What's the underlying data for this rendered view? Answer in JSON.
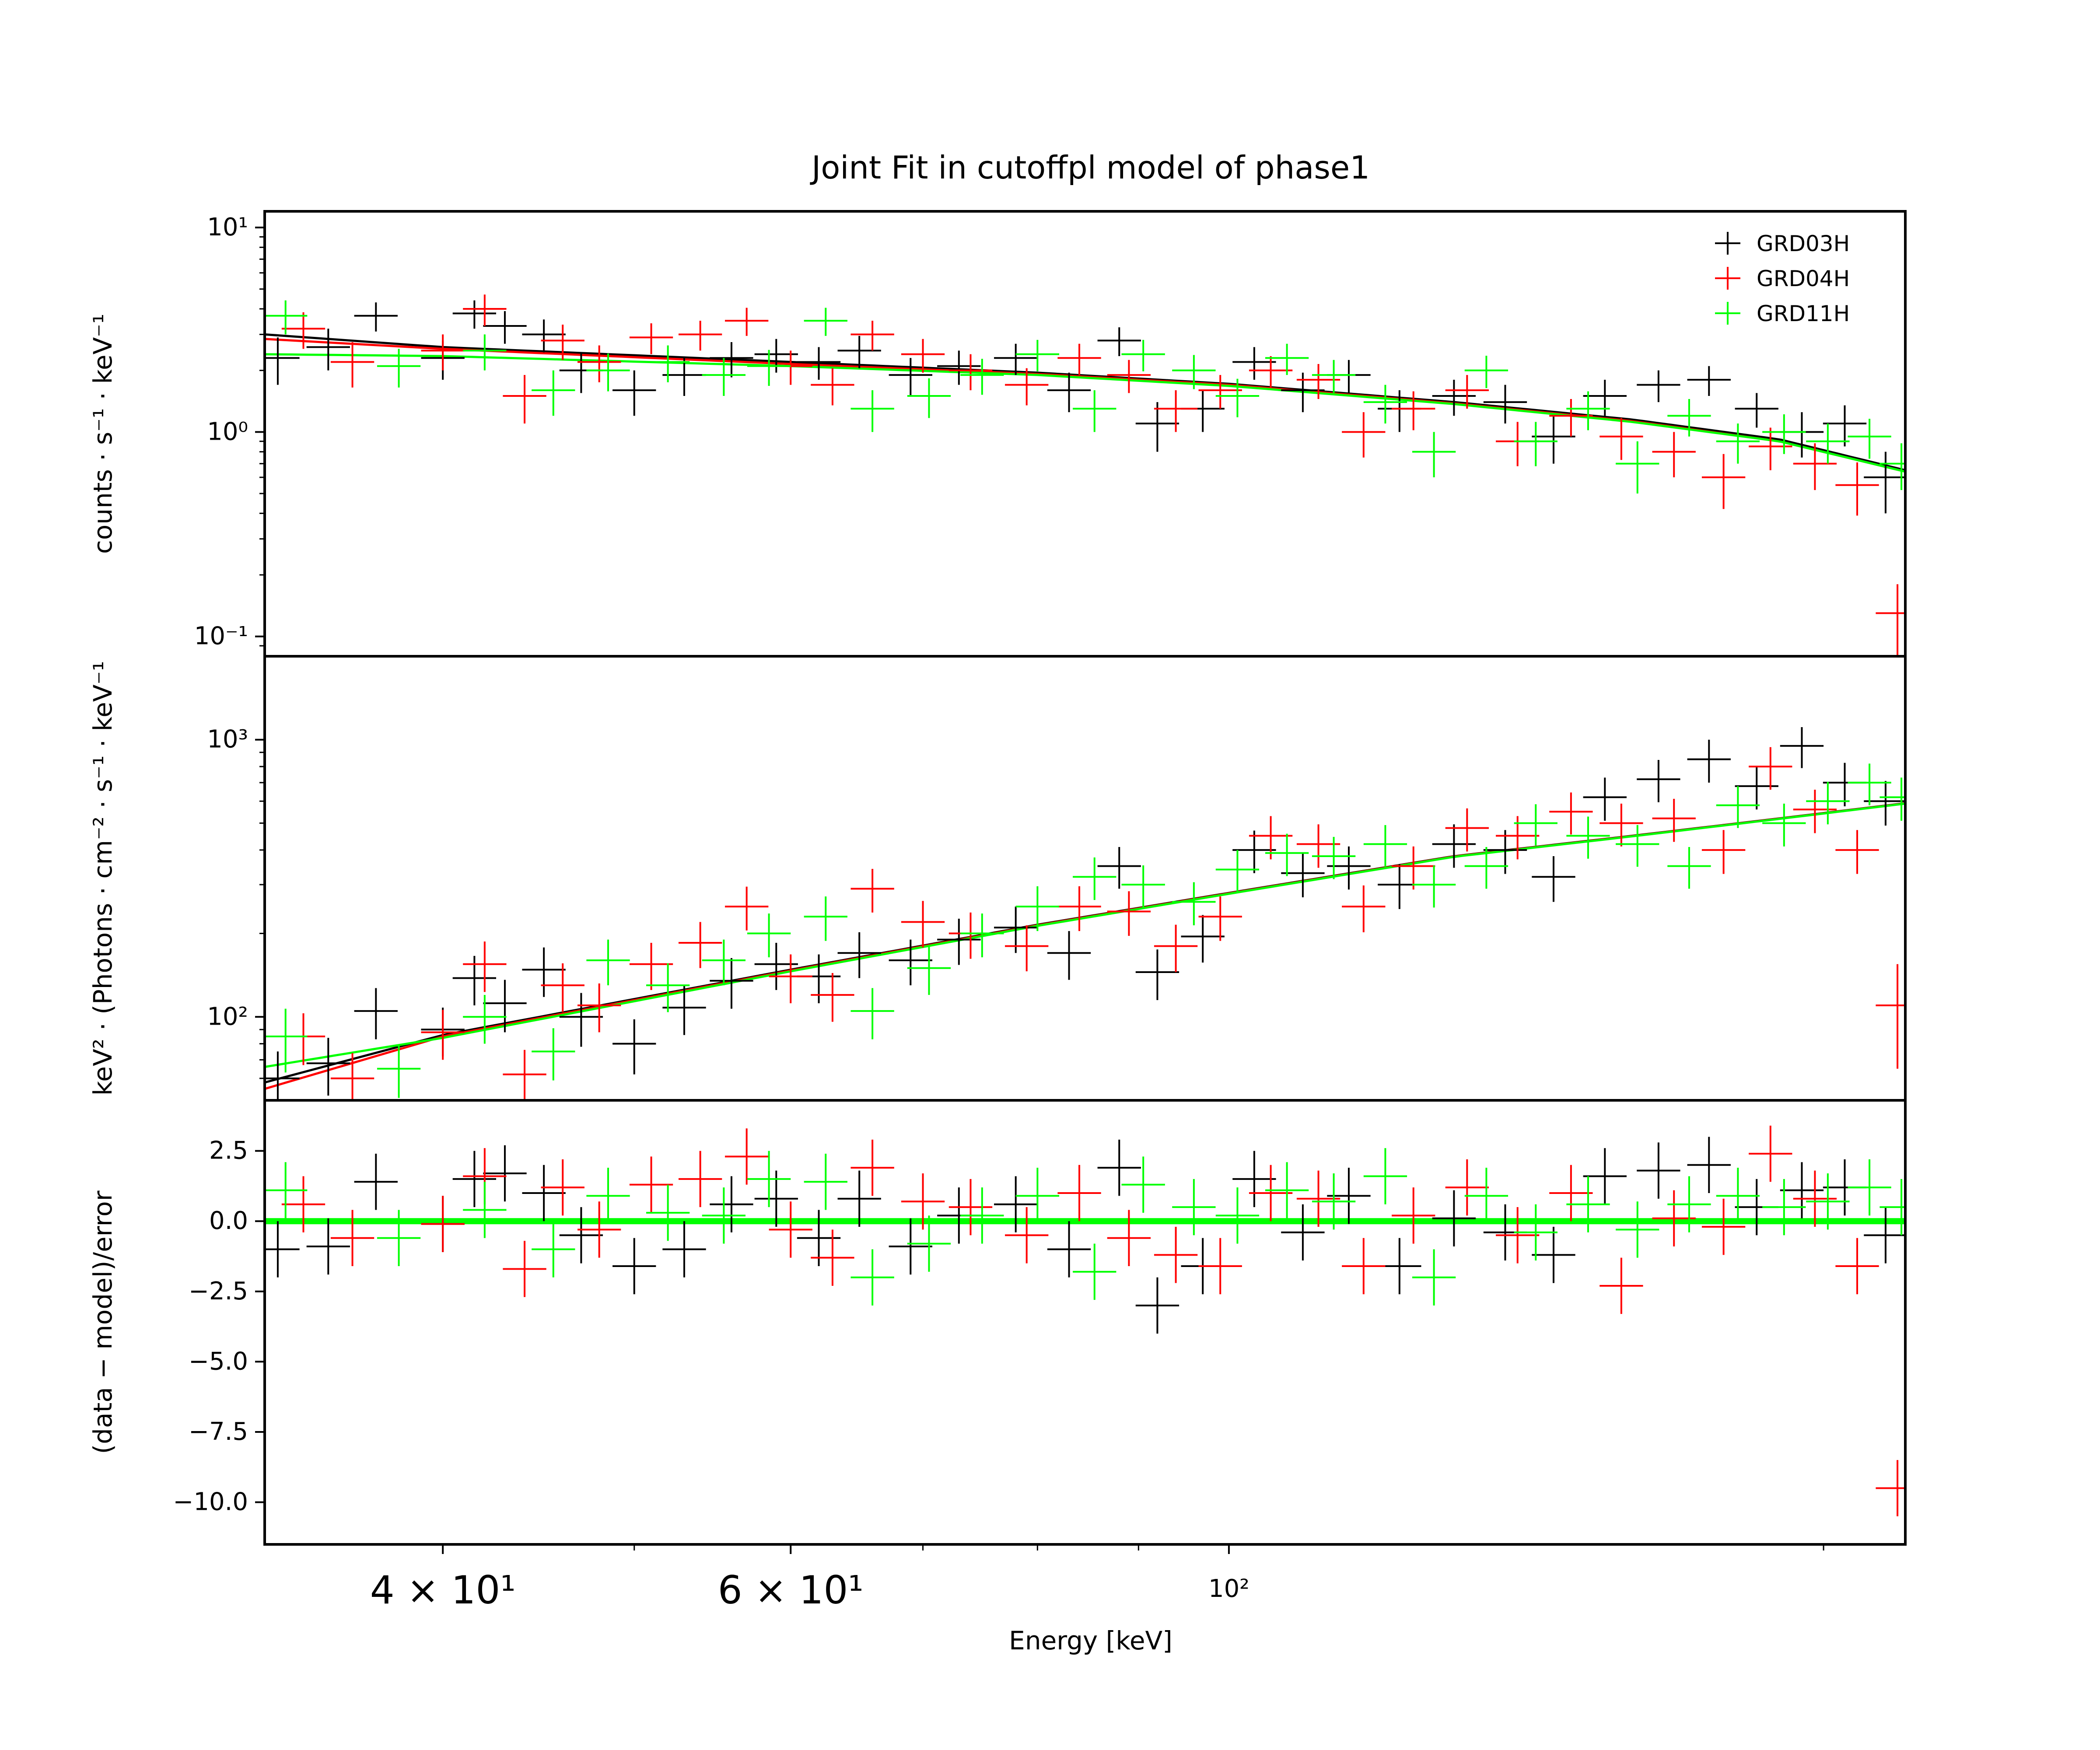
{
  "title": "Joint Fit  in cutoffpl model of phase1",
  "xlabel": "Energy [keV]",
  "legend": [
    {
      "name": "GRD03H",
      "color": "#000000"
    },
    {
      "name": "GRD04H",
      "color": "#ff0000"
    },
    {
      "name": "GRD11H",
      "color": "#00ff00"
    }
  ],
  "chart_data": [
    {
      "type": "scatter",
      "panel": "counts",
      "title": "Joint Fit  in cutoffpl model of phase1",
      "ylabel": "counts · s⁻¹ · keV⁻¹",
      "xscale": "log",
      "yscale": "log",
      "xlim": [
        32.5,
        220
      ],
      "ylim": [
        0.08,
        12
      ],
      "ytick_labels": [
        "10⁻¹",
        "10⁰",
        "10¹"
      ],
      "ytick_values": [
        0.1,
        1,
        10
      ],
      "series": [
        {
          "name": "GRD03H",
          "color": "#000000",
          "x": [
            33,
            35,
            37,
            40,
            41.5,
            43,
            45,
            47,
            50,
            53,
            56,
            59,
            62,
            65,
            69,
            73,
            78,
            83,
            88,
            92,
            97,
            103,
            109,
            115,
            122,
            130,
            138,
            146,
            155,
            165,
            175,
            185,
            195,
            205,
            215
          ],
          "y": [
            2.3,
            2.6,
            3.7,
            2.3,
            3.8,
            3.3,
            3.0,
            2.0,
            1.6,
            1.9,
            2.3,
            2.4,
            2.2,
            2.5,
            1.9,
            2.1,
            2.3,
            1.6,
            2.8,
            1.1,
            1.3,
            2.2,
            1.6,
            1.9,
            1.3,
            1.5,
            1.4,
            0.95,
            1.5,
            1.7,
            1.8,
            1.3,
            1.0,
            1.1,
            0.6
          ],
          "yerr": [
            0.6,
            0.6,
            0.6,
            0.5,
            0.6,
            0.6,
            0.55,
            0.45,
            0.4,
            0.4,
            0.45,
            0.45,
            0.4,
            0.45,
            0.4,
            0.4,
            0.4,
            0.35,
            0.45,
            0.3,
            0.3,
            0.4,
            0.35,
            0.35,
            0.3,
            0.3,
            0.3,
            0.25,
            0.3,
            0.3,
            0.3,
            0.25,
            0.25,
            0.25,
            0.2
          ]
        },
        {
          "name": "GRD04H",
          "color": "#ff0000",
          "x": [
            34,
            36,
            40,
            42,
            44,
            46,
            48,
            51,
            54,
            57,
            60,
            63,
            66,
            70,
            74,
            79,
            84,
            89,
            94,
            99,
            105,
            111,
            117,
            124,
            132,
            140,
            149,
            158,
            168,
            178,
            188,
            198,
            208,
            218
          ],
          "y": [
            3.2,
            2.2,
            2.5,
            4.0,
            1.5,
            2.8,
            2.2,
            2.9,
            3.0,
            3.5,
            2.1,
            1.7,
            3.0,
            2.4,
            2.0,
            1.7,
            2.3,
            1.9,
            1.3,
            1.6,
            2.0,
            1.8,
            1.0,
            1.3,
            1.6,
            0.9,
            1.2,
            0.95,
            0.8,
            0.6,
            0.85,
            0.7,
            0.55,
            0.13
          ],
          "yerr": [
            0.65,
            0.55,
            0.5,
            0.7,
            0.4,
            0.55,
            0.45,
            0.5,
            0.5,
            0.55,
            0.4,
            0.35,
            0.5,
            0.45,
            0.4,
            0.35,
            0.4,
            0.35,
            0.3,
            0.3,
            0.35,
            0.35,
            0.25,
            0.28,
            0.3,
            0.22,
            0.25,
            0.22,
            0.2,
            0.18,
            0.2,
            0.18,
            0.16,
            0.05
          ]
        },
        {
          "name": "GRD11H",
          "color": "#00ff00",
          "x": [
            33.3,
            38,
            42,
            45.5,
            48.5,
            52,
            55.5,
            58.5,
            62.5,
            66,
            70.5,
            75,
            80,
            85.5,
            90.5,
            96,
            101,
            107,
            113,
            120,
            127,
            135,
            143,
            152,
            161,
            171,
            181,
            191,
            201,
            211,
            219
          ],
          "y": [
            3.7,
            2.1,
            2.5,
            1.6,
            2.0,
            2.2,
            1.9,
            2.1,
            3.5,
            1.3,
            1.5,
            1.9,
            2.4,
            1.3,
            2.4,
            2.0,
            1.5,
            2.3,
            1.9,
            1.4,
            0.8,
            2.0,
            0.9,
            1.3,
            0.7,
            1.2,
            0.9,
            1.0,
            0.9,
            0.95,
            0.7
          ],
          "yerr": [
            0.7,
            0.45,
            0.5,
            0.4,
            0.42,
            0.45,
            0.4,
            0.42,
            0.55,
            0.3,
            0.33,
            0.38,
            0.42,
            0.3,
            0.42,
            0.38,
            0.32,
            0.4,
            0.35,
            0.3,
            0.2,
            0.36,
            0.22,
            0.28,
            0.2,
            0.25,
            0.2,
            0.22,
            0.2,
            0.21,
            0.18
          ]
        }
      ],
      "models": [
        {
          "name": "GRD03H",
          "color": "#000000",
          "x": [
            32.5,
            40,
            60,
            80,
            100,
            130,
            160,
            190,
            220
          ],
          "y": [
            3.0,
            2.6,
            2.2,
            1.95,
            1.72,
            1.4,
            1.15,
            0.92,
            0.65
          ]
        },
        {
          "name": "GRD04H",
          "color": "#ff0000",
          "x": [
            32.5,
            40,
            60,
            80,
            100,
            130,
            160,
            190,
            220
          ],
          "y": [
            2.85,
            2.55,
            2.15,
            1.92,
            1.7,
            1.38,
            1.13,
            0.9,
            0.64
          ]
        },
        {
          "name": "GRD11H",
          "color": "#00ff00",
          "x": [
            32.5,
            40,
            60,
            80,
            100,
            130,
            160,
            190,
            220
          ],
          "y": [
            2.4,
            2.35,
            2.1,
            1.9,
            1.68,
            1.37,
            1.12,
            0.9,
            0.64
          ]
        }
      ]
    },
    {
      "type": "scatter",
      "panel": "eeuf",
      "ylabel": "keV² · (Photons · cm⁻² · s⁻¹ · keV⁻¹",
      "xscale": "log",
      "yscale": "log",
      "xlim": [
        32.5,
        220
      ],
      "ylim": [
        50,
        2000
      ],
      "ytick_labels": [
        "10²",
        "10³"
      ],
      "ytick_values": [
        100,
        1000
      ],
      "series": [
        {
          "name": "GRD03H",
          "color": "#000000",
          "x": [
            33,
            35,
            37,
            40,
            41.5,
            43,
            45,
            47,
            50,
            53,
            56,
            59,
            62,
            65,
            69,
            73,
            78,
            83,
            88,
            92,
            97,
            103,
            109,
            115,
            122,
            130,
            138,
            146,
            155,
            165,
            175,
            185,
            195,
            205,
            215
          ],
          "y": [
            60,
            68,
            105,
            90,
            138,
            112,
            148,
            100,
            80,
            108,
            135,
            155,
            140,
            170,
            160,
            190,
            210,
            170,
            350,
            145,
            195,
            400,
            330,
            350,
            300,
            420,
            400,
            320,
            620,
            720,
            850,
            680,
            950,
            700,
            600
          ],
          "yerr": [
            15,
            16,
            22,
            18,
            28,
            24,
            30,
            22,
            18,
            22,
            28,
            30,
            28,
            32,
            30,
            36,
            40,
            34,
            60,
            30,
            38,
            70,
            60,
            62,
            55,
            75,
            72,
            60,
            110,
            125,
            150,
            120,
            160,
            125,
            110
          ]
        },
        {
          "name": "GRD04H",
          "color": "#ff0000",
          "x": [
            34,
            36,
            40,
            42,
            44,
            46,
            48,
            51,
            54,
            57,
            60,
            63,
            66,
            70,
            74,
            79,
            84,
            89,
            94,
            99,
            105,
            111,
            117,
            124,
            132,
            140,
            149,
            158,
            168,
            178,
            188,
            198,
            208,
            218
          ],
          "y": [
            85,
            60,
            88,
            155,
            62,
            130,
            110,
            155,
            185,
            250,
            140,
            120,
            290,
            220,
            200,
            180,
            250,
            240,
            180,
            230,
            450,
            420,
            250,
            350,
            480,
            450,
            550,
            500,
            520,
            400,
            800,
            560,
            400,
            110
          ],
          "yerr": [
            18,
            14,
            18,
            32,
            14,
            26,
            22,
            30,
            35,
            45,
            28,
            24,
            52,
            42,
            38,
            34,
            46,
            44,
            35,
            42,
            80,
            75,
            48,
            62,
            85,
            80,
            95,
            88,
            92,
            72,
            140,
            100,
            72,
            45
          ]
        },
        {
          "name": "GRD11H",
          "color": "#00ff00",
          "x": [
            33.3,
            38,
            42,
            45.5,
            48.5,
            52,
            55.5,
            58.5,
            62.5,
            66,
            70.5,
            75,
            80,
            85.5,
            90.5,
            96,
            101,
            107,
            113,
            120,
            127,
            135,
            143,
            152,
            161,
            171,
            181,
            191,
            201,
            211,
            219
          ],
          "y": [
            85,
            65,
            100,
            75,
            160,
            130,
            160,
            200,
            230,
            105,
            150,
            200,
            250,
            320,
            300,
            260,
            340,
            390,
            380,
            420,
            300,
            350,
            500,
            450,
            420,
            350,
            580,
            500,
            600,
            700,
            620
          ],
          "yerr": [
            22,
            14,
            20,
            16,
            30,
            26,
            30,
            36,
            42,
            22,
            30,
            36,
            46,
            56,
            52,
            46,
            60,
            68,
            66,
            72,
            52,
            60,
            85,
            78,
            72,
            60,
            100,
            88,
            105,
            120,
            110
          ]
        }
      ],
      "models": [
        {
          "name": "GRD03H",
          "color": "#000000",
          "x": [
            32.5,
            40,
            60,
            80,
            100,
            130,
            160,
            190,
            220
          ],
          "y": [
            58,
            86,
            148,
            215,
            280,
            380,
            450,
            520,
            590
          ]
        },
        {
          "name": "GRD04H",
          "color": "#ff0000",
          "x": [
            32.5,
            40,
            60,
            80,
            100,
            130,
            160,
            190,
            220
          ],
          "y": [
            55,
            85,
            147,
            214,
            279,
            379,
            449,
            519,
            589
          ]
        },
        {
          "name": "GRD11H",
          "color": "#00ff00",
          "x": [
            32.5,
            40,
            60,
            80,
            100,
            130,
            160,
            190,
            220
          ],
          "y": [
            66,
            84,
            146,
            213,
            278,
            378,
            448,
            518,
            588
          ]
        }
      ]
    },
    {
      "type": "scatter",
      "panel": "residuals",
      "ylabel": "(data − model)/error",
      "xscale": "log",
      "yscale": "linear",
      "xlim": [
        32.5,
        220
      ],
      "ylim": [
        -11.5,
        4.3
      ],
      "ytick_labels": [
        "−10.0",
        "−7.5",
        "−5.0",
        "−2.5",
        "0.0",
        "2.5"
      ],
      "ytick_values": [
        -10,
        -7.5,
        -5,
        -2.5,
        0,
        2.5
      ],
      "xtick_labels": [
        "4 × 10¹",
        "6 × 10¹",
        "10²"
      ],
      "xtick_values": [
        40,
        60,
        100
      ],
      "series": [
        {
          "name": "GRD03H",
          "color": "#000000",
          "x": [
            33,
            35,
            37,
            40,
            41.5,
            43,
            45,
            47,
            50,
            53,
            56,
            59,
            62,
            65,
            69,
            73,
            78,
            83,
            88,
            92,
            97,
            103,
            109,
            115,
            122,
            130,
            138,
            146,
            155,
            165,
            175,
            185,
            195,
            205,
            215
          ],
          "y": [
            -1.0,
            -0.9,
            1.4,
            -0.1,
            1.5,
            1.7,
            1.0,
            -0.5,
            -1.6,
            -1.0,
            0.6,
            0.8,
            -0.6,
            0.8,
            -0.9,
            0.2,
            0.6,
            -1.0,
            1.9,
            -3.0,
            -1.6,
            1.5,
            -0.4,
            0.9,
            -1.6,
            0.1,
            -0.4,
            -1.2,
            1.6,
            1.8,
            2.0,
            0.5,
            1.1,
            1.2,
            -0.5
          ],
          "yerr": [
            1
          ]
        },
        {
          "name": "GRD04H",
          "color": "#ff0000",
          "x": [
            34,
            36,
            40,
            42,
            44,
            46,
            48,
            51,
            54,
            57,
            60,
            63,
            66,
            70,
            74,
            79,
            84,
            89,
            94,
            99,
            105,
            111,
            117,
            124,
            132,
            140,
            149,
            158,
            168,
            178,
            188,
            198,
            208,
            218
          ],
          "y": [
            0.6,
            -0.6,
            -0.1,
            1.6,
            -1.7,
            1.2,
            -0.3,
            1.3,
            1.5,
            2.3,
            -0.3,
            -1.3,
            1.9,
            0.7,
            0.5,
            -0.5,
            1.0,
            -0.6,
            -1.2,
            -1.6,
            1.0,
            0.8,
            -1.6,
            0.2,
            1.2,
            -0.5,
            1.0,
            -2.3,
            0.1,
            -0.2,
            2.4,
            0.8,
            -1.6,
            -9.5
          ],
          "yerr": [
            1
          ]
        },
        {
          "name": "GRD11H",
          "color": "#00ff00",
          "x": [
            33.3,
            38,
            42,
            45.5,
            48.5,
            52,
            55.5,
            58.5,
            62.5,
            66,
            70.5,
            75,
            80,
            85.5,
            90.5,
            96,
            101,
            107,
            113,
            120,
            127,
            135,
            143,
            152,
            161,
            171,
            181,
            191,
            201,
            211,
            219
          ],
          "y": [
            1.1,
            -0.6,
            0.4,
            -1.0,
            0.9,
            0.3,
            0.2,
            1.5,
            1.4,
            -2.0,
            -0.8,
            0.2,
            0.9,
            -1.8,
            1.3,
            0.5,
            0.2,
            1.1,
            0.7,
            1.6,
            -2.0,
            0.9,
            -0.4,
            0.6,
            -0.3,
            0.6,
            0.9,
            0.5,
            0.7,
            1.2,
            0.5
          ],
          "yerr": [
            1
          ]
        }
      ]
    }
  ]
}
